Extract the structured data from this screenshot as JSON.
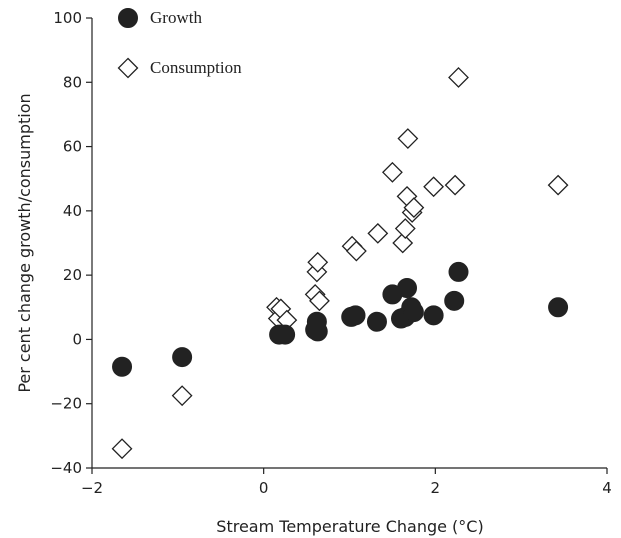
{
  "chart_data": {
    "type": "scatter",
    "title": "",
    "xlabel": "Stream Temperature Change (°C)",
    "ylabel": "Per cent change growth/consumption",
    "xlim": [
      -2,
      4
    ],
    "ylim": [
      -40,
      100
    ],
    "xticks": [
      -2,
      0,
      2,
      4
    ],
    "yticks": [
      -40,
      -20,
      0,
      20,
      40,
      60,
      80,
      100
    ],
    "grid": false,
    "legend_position": "top-left",
    "series": [
      {
        "name": "Growth",
        "marker": "filled-circle",
        "color": "#222222",
        "points": [
          [
            -1.65,
            -8.5
          ],
          [
            -0.95,
            -5.5
          ],
          [
            0.18,
            1.5
          ],
          [
            0.25,
            1.5
          ],
          [
            0.6,
            3.0
          ],
          [
            0.63,
            2.5
          ],
          [
            0.62,
            5.5
          ],
          [
            1.02,
            7.0
          ],
          [
            1.07,
            7.5
          ],
          [
            1.32,
            5.5
          ],
          [
            1.5,
            14.0
          ],
          [
            1.6,
            6.5
          ],
          [
            1.65,
            7.0
          ],
          [
            1.67,
            16.0
          ],
          [
            1.72,
            10.0
          ],
          [
            1.75,
            8.5
          ],
          [
            1.98,
            7.5
          ],
          [
            2.22,
            12.0
          ],
          [
            2.27,
            21.0
          ],
          [
            3.43,
            10.0
          ]
        ]
      },
      {
        "name": "Consumption",
        "marker": "open-diamond",
        "color": "#222222",
        "points": [
          [
            -1.65,
            -34.0
          ],
          [
            -0.95,
            -17.5
          ],
          [
            0.15,
            10.0
          ],
          [
            0.17,
            6.5
          ],
          [
            0.2,
            9.5
          ],
          [
            0.27,
            6.0
          ],
          [
            0.6,
            14.0
          ],
          [
            0.62,
            21.0
          ],
          [
            0.63,
            24.0
          ],
          [
            0.65,
            12.0
          ],
          [
            1.03,
            29.0
          ],
          [
            1.08,
            27.5
          ],
          [
            1.33,
            33.0
          ],
          [
            1.5,
            52.0
          ],
          [
            1.62,
            30.0
          ],
          [
            1.65,
            34.5
          ],
          [
            1.67,
            44.5
          ],
          [
            1.68,
            62.5
          ],
          [
            1.73,
            39.5
          ],
          [
            1.75,
            41.0
          ],
          [
            1.98,
            47.5
          ],
          [
            2.23,
            48.0
          ],
          [
            2.27,
            81.5
          ],
          [
            3.43,
            48.0
          ]
        ]
      }
    ]
  }
}
